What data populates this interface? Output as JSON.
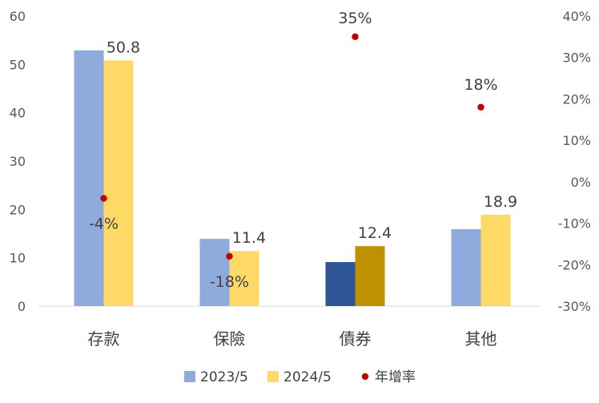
{
  "chart_data": {
    "type": "bar",
    "categories": [
      "存款",
      "保險",
      "債券",
      "其他"
    ],
    "series": [
      {
        "name": "2023/5",
        "values": [
          52.9,
          13.9,
          9.1,
          15.9
        ],
        "color": "#8FAADC",
        "highlight_color": "#2F5597"
      },
      {
        "name": "2024/5",
        "values": [
          50.8,
          11.4,
          12.4,
          18.9
        ],
        "color": "#FFD966",
        "highlight_color": "#BF9000"
      }
    ],
    "line_series": {
      "name": "年增率",
      "type": "scatter",
      "axis": "right",
      "values": [
        -4,
        -18,
        35,
        18
      ],
      "color": "#C00000"
    },
    "data_labels": {
      "bars_2024": [
        "50.8",
        "11.4",
        "12.4",
        "18.9"
      ],
      "growth": [
        "-4%",
        "-18%",
        "35%",
        "18%"
      ]
    },
    "highlight_category_index": 2,
    "highlight_label_color": "#997300",
    "highlight_growth_color": "#C00000",
    "y_left": {
      "ticks": [
        "0",
        "10",
        "20",
        "30",
        "40",
        "50",
        "60"
      ],
      "range": [
        0,
        60
      ]
    },
    "y_right": {
      "ticks": [
        "-30%",
        "-20%",
        "-10%",
        "0%",
        "10%",
        "20%",
        "30%",
        "40%"
      ],
      "range": [
        -30,
        40
      ]
    },
    "legend": {
      "position": "bottom",
      "entries": [
        "2023/5",
        "2024/5",
        "年增率"
      ]
    },
    "grid": false,
    "title": "",
    "xlabel": "",
    "ylabel": ""
  }
}
